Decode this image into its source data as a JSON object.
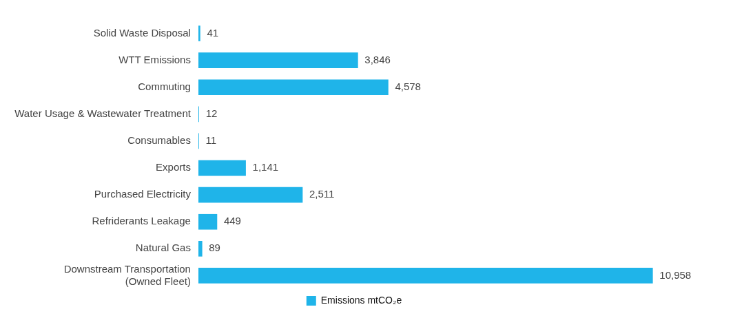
{
  "chart_data": {
    "type": "bar",
    "orientation": "horizontal",
    "categories": [
      "Solid Waste Disposal",
      "WTT Emissions",
      "Commuting",
      "Water Usage & Wastewater Treatment",
      "Consumables",
      "Exports",
      "Purchased Electricity",
      "Refriderants Leakage",
      "Natural Gas",
      "Downstream Transportation\n(Owned Fleet)"
    ],
    "series": [
      {
        "name": "Emissions mtCO₂e",
        "color": "#1fb4e9",
        "values": [
          41,
          3846,
          4578,
          12,
          11,
          1141,
          2511,
          449,
          89,
          10958
        ],
        "value_labels": [
          "41",
          "3,846",
          "4,578",
          "12",
          "11",
          "1,141",
          "2,511",
          "449",
          "89",
          "10,958"
        ]
      }
    ],
    "grid": false,
    "legend": "bottom",
    "tick_labels": "y"
  }
}
